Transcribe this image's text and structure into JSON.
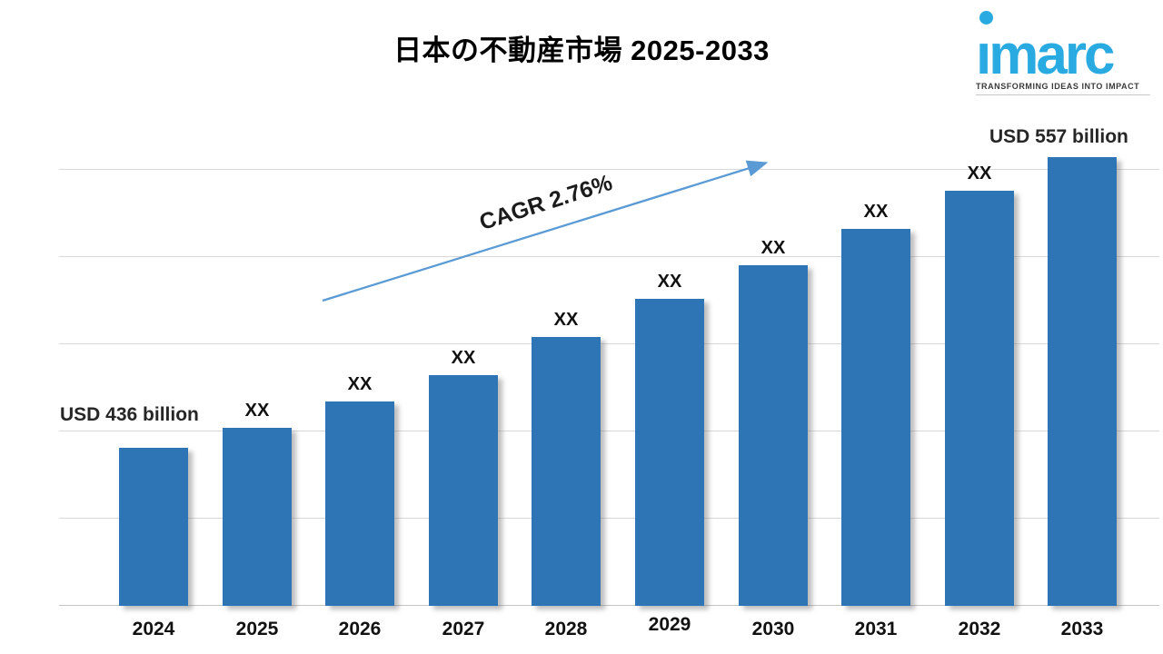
{
  "title": "日本の不動産市場 2025-2033",
  "logo": {
    "brand": "imarc",
    "tagline": "TRANSFORMING IDEAS INTO IMPACT",
    "brand_color": "#29ABE2"
  },
  "annotations": {
    "cagr": "CAGR 2.76%",
    "first_value": "USD 436 billion",
    "last_value": "USD 557 billion",
    "masked": "XX"
  },
  "chart_data": {
    "type": "bar",
    "title": "日本の不動産市場 2025-2033",
    "categories": [
      "2024",
      "2025",
      "2026",
      "2027",
      "2028",
      "2029",
      "2030",
      "2031",
      "2032",
      "2033"
    ],
    "series": [
      {
        "name": "Japan real estate market size",
        "unit": "USD billion",
        "values": [
          "USD 436 billion",
          "XX",
          "XX",
          "XX",
          "XX",
          "XX",
          "XX",
          "XX",
          "XX",
          "USD 557 billion"
        ],
        "values_numeric_estimated": [
          436,
          444,
          455,
          466,
          482,
          498,
          512,
          527,
          543,
          557
        ]
      }
    ],
    "known_values": {
      "2024": 436,
      "2033": 557
    },
    "cagr_label": "CAGR 2.76%",
    "axis": {
      "x_label": "",
      "y_label": "",
      "y_ticks_visible": false,
      "y_min_estimated": 370,
      "y_max_estimated": 566,
      "gridlines": true,
      "gridline_count": 6
    },
    "colors": {
      "bar": "#2E75B5",
      "arrow": "#5B9BD5",
      "gridline": "#d8d8d8"
    },
    "legend_position": "none"
  }
}
